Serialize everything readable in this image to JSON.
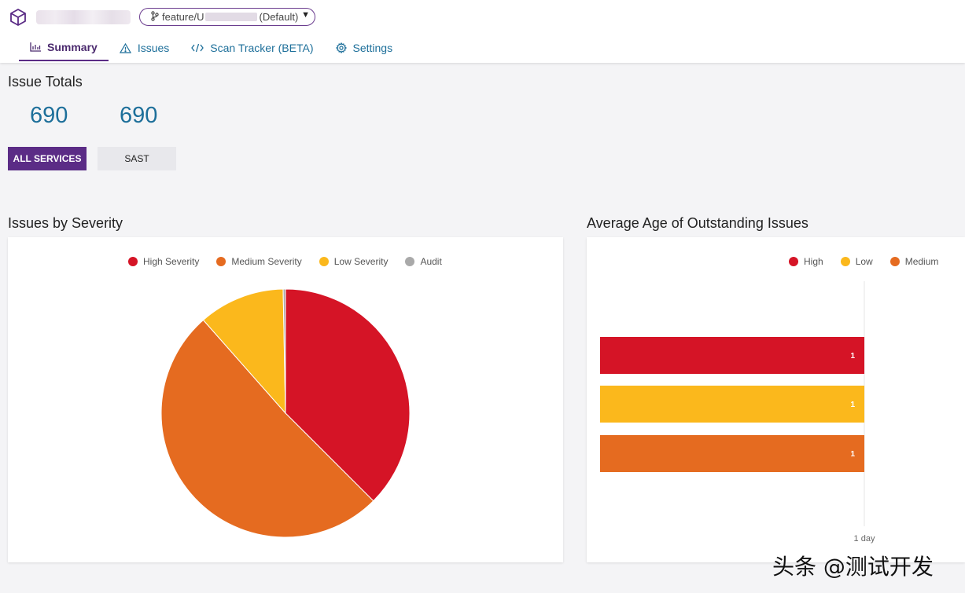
{
  "header": {
    "branch": {
      "prefix": "feature/U",
      "suffix": "(Default)"
    }
  },
  "tabs": [
    {
      "label": "Summary",
      "icon": "bar-chart-icon",
      "active": true
    },
    {
      "label": "Issues",
      "icon": "warning-icon",
      "active": false
    },
    {
      "label": "Scan Tracker (BETA)",
      "icon": "code-icon",
      "active": false
    },
    {
      "label": "Settings",
      "icon": "gear-icon",
      "active": false
    }
  ],
  "issue_totals": {
    "title": "Issue Totals",
    "values": [
      "690",
      "690"
    ],
    "buttons": {
      "all": "ALL SERVICES",
      "sast": "SAST"
    }
  },
  "severity_chart": {
    "title": "Issues by Severity",
    "legend": [
      {
        "label": "High Severity",
        "color": "#d51426"
      },
      {
        "label": "Medium Severity",
        "color": "#e56b20"
      },
      {
        "label": "Low Severity",
        "color": "#fbb81c"
      },
      {
        "label": "Audit",
        "color": "#a9a9a9"
      }
    ]
  },
  "age_chart": {
    "title": "Average Age of Outstanding Issues",
    "legend": [
      {
        "label": "High",
        "color": "#d51426"
      },
      {
        "label": "Low",
        "color": "#fbb81c"
      },
      {
        "label": "Medium",
        "color": "#e56b20"
      }
    ],
    "tick_label": "1 day"
  },
  "watermark": "头条 @测试开发",
  "colors": {
    "accent": "#5b2c86",
    "link": "#1d6f9a"
  },
  "chart_data": [
    {
      "type": "pie",
      "labels": [
        "High Severity",
        "Medium Severity",
        "Low Severity",
        "Audit"
      ],
      "values": [
        37.5,
        51.0,
        11.2,
        0.3
      ],
      "colors": [
        "#d51426",
        "#e56b20",
        "#fbb81c",
        "#a9a9a9"
      ]
    },
    {
      "type": "bar",
      "orientation": "horizontal",
      "categories": [
        "High",
        "Low",
        "Medium"
      ],
      "values": [
        1,
        1,
        1
      ],
      "data_labels": [
        "1",
        "1",
        "1"
      ],
      "colors": [
        "#d51426",
        "#fbb81c",
        "#e56b20"
      ],
      "xlim": [
        0,
        1
      ],
      "x_ticks": [
        "1 day"
      ]
    }
  ]
}
